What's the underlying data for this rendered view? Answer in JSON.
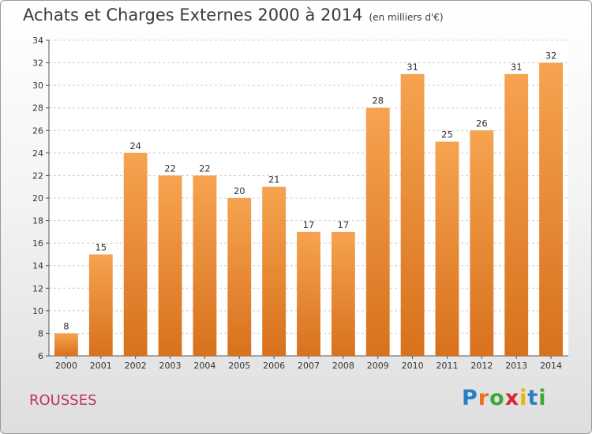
{
  "header": {
    "title": "Achats et Charges Externes 2000 à 2014",
    "unit": "(en milliers d'€)"
  },
  "footer": {
    "place": "ROUSSES",
    "brand": "Proxiti"
  },
  "colors": {
    "bar_top": "#f6a34f",
    "bar_bottom": "#d8711d",
    "place_text": "#c0306a"
  },
  "chart_data": {
    "type": "bar",
    "title": "Achats et Charges Externes 2000 à 2014",
    "subtitle": "(en milliers d'€)",
    "categories": [
      "2000",
      "2001",
      "2002",
      "2003",
      "2004",
      "2005",
      "2006",
      "2007",
      "2008",
      "2009",
      "2010",
      "2011",
      "2012",
      "2013",
      "2014"
    ],
    "values": [
      8,
      15,
      24,
      22,
      22,
      20,
      21,
      17,
      17,
      28,
      31,
      25,
      26,
      31,
      32
    ],
    "ylim": [
      6,
      34
    ],
    "yticks": [
      6,
      8,
      10,
      12,
      14,
      16,
      18,
      20,
      22,
      24,
      26,
      28,
      30,
      32,
      34
    ],
    "grid": true,
    "data_labels": true
  }
}
